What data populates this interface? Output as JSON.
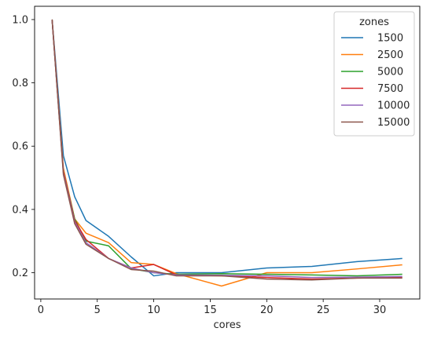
{
  "chart_data": {
    "type": "line",
    "title": "",
    "xlabel": "cores",
    "ylabel": "",
    "xlim": [
      -0.55,
      33.55
    ],
    "ylim": [
      0.117,
      1.042
    ],
    "xticks": [
      0,
      5,
      10,
      15,
      20,
      25,
      30
    ],
    "yticks": [
      0.2,
      0.4,
      0.6,
      0.8,
      1.0
    ],
    "ytick_labels": [
      "0.2",
      "0.4",
      "0.6",
      "0.8",
      "1.0"
    ],
    "grid": false,
    "legend": {
      "title": "zones",
      "placement": "top-right"
    },
    "series": [
      {
        "name": "1500",
        "color": "#1f77b4",
        "x": [
          1,
          2,
          3,
          4,
          6,
          8,
          10,
          12,
          16,
          20,
          24,
          28,
          32
        ],
        "y": [
          1.0,
          0.57,
          0.44,
          0.365,
          0.315,
          0.25,
          0.19,
          0.2,
          0.2,
          0.215,
          0.22,
          0.235,
          0.245
        ]
      },
      {
        "name": "2500",
        "color": "#ff7f0e",
        "x": [
          1,
          2,
          3,
          4,
          6,
          8,
          10,
          12,
          16,
          20,
          24,
          28,
          32
        ],
        "y": [
          1.0,
          0.53,
          0.37,
          0.325,
          0.295,
          0.232,
          0.226,
          0.197,
          0.158,
          0.2,
          0.2,
          0.212,
          0.225
        ]
      },
      {
        "name": "5000",
        "color": "#2ca02c",
        "x": [
          1,
          2,
          3,
          4,
          6,
          8,
          10,
          12,
          16,
          20,
          24,
          28,
          32
        ],
        "y": [
          1.0,
          0.52,
          0.37,
          0.3,
          0.285,
          0.213,
          0.2,
          0.195,
          0.197,
          0.195,
          0.193,
          0.19,
          0.195
        ]
      },
      {
        "name": "7500",
        "color": "#d62728",
        "x": [
          1,
          2,
          3,
          4,
          6,
          8,
          10,
          12,
          16,
          20,
          24,
          28,
          32
        ],
        "y": [
          1.0,
          0.52,
          0.365,
          0.305,
          0.245,
          0.215,
          0.226,
          0.193,
          0.19,
          0.185,
          0.18,
          0.183,
          0.185
        ]
      },
      {
        "name": "10000",
        "color": "#9467bd",
        "x": [
          1,
          2,
          3,
          4,
          6,
          8,
          10,
          12,
          16,
          20,
          24,
          28,
          32
        ],
        "y": [
          1.0,
          0.515,
          0.36,
          0.295,
          0.245,
          0.215,
          0.2,
          0.193,
          0.192,
          0.19,
          0.185,
          0.186,
          0.188
        ]
      },
      {
        "name": "15000",
        "color": "#8c564b",
        "x": [
          1,
          2,
          3,
          4,
          6,
          8,
          10,
          12,
          16,
          20,
          24,
          28,
          32
        ],
        "y": [
          1.0,
          0.51,
          0.355,
          0.29,
          0.245,
          0.21,
          0.205,
          0.19,
          0.19,
          0.18,
          0.177,
          0.183,
          0.183
        ]
      }
    ]
  }
}
